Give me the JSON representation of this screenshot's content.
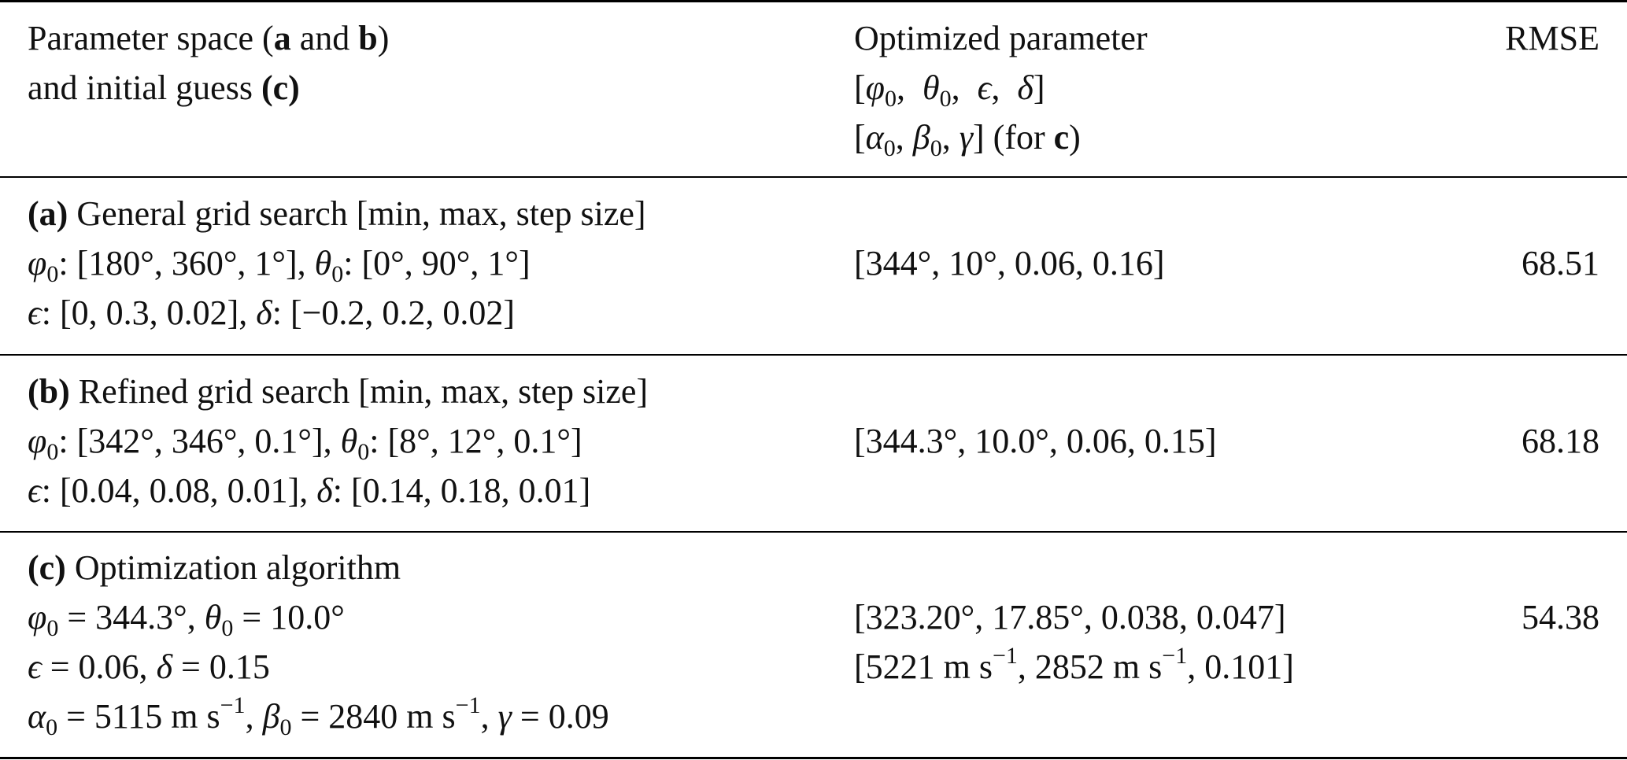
{
  "header": {
    "col1_line1_pre": "Parameter space (",
    "col1_line1_a": "a",
    "col1_line1_and": " and ",
    "col1_line1_b": "b",
    "col1_line1_post": ")",
    "col1_line2_pre": "and initial guess ",
    "col1_line2_c": "(c)",
    "col2_line1": "Optimized parameter",
    "col2_line2": "[φ0, θ0, ϵ, δ]",
    "col2_line3_pre": "[α0, β0, γ] (for ",
    "col2_line3_c": "c",
    "col2_line3_post": ")",
    "col3": "RMSE"
  },
  "rows": [
    {
      "label": "(a)",
      "title": " General grid search [min, max, step size]",
      "line2": "φ0: [180°, 360°, 1°], θ0: [0°, 90°, 1°]",
      "line3": "ϵ: [0, 0.3, 0.02], δ: [−0.2, 0.2, 0.02]",
      "optimized": "[344°, 10°, 0.06, 0.16]",
      "rmse": "68.51"
    },
    {
      "label": "(b)",
      "title": " Refined grid search [min, max, step size]",
      "line2": "φ0: [342°, 346°, 0.1°], θ0: [8°, 12°, 0.1°]",
      "line3": "ϵ: [0.04, 0.08, 0.01], δ: [0.14, 0.18, 0.01]",
      "optimized": "[344.3°, 10.0°, 0.06, 0.15]",
      "rmse": "68.18"
    },
    {
      "label": "(c)",
      "title": " Optimization algorithm",
      "line2": "φ0 = 344.3°, θ0 = 10.0°",
      "line3": "ϵ = 0.06, δ = 0.15",
      "line4": "α0 = 5115 m s−1, β0 = 2840 m s−1, γ = 0.09",
      "optimized": "[323.20°, 17.85°, 0.038, 0.047]",
      "optimized2": "[5221 m s−1, 2852 m s−1, 0.101]",
      "rmse": "54.38"
    }
  ]
}
